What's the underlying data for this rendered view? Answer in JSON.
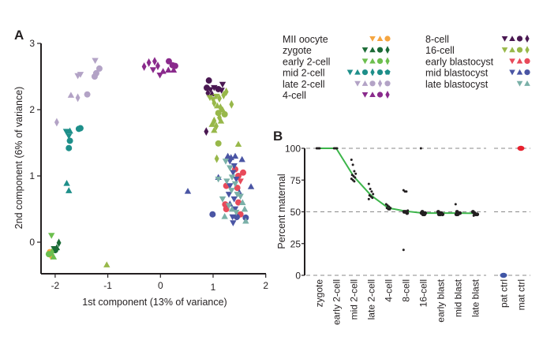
{
  "chart_data": [
    {
      "panel": "A",
      "type": "scatter",
      "title": "",
      "xlabel": "1st component (13% of variance)",
      "ylabel": "2nd component (6% of variance)",
      "xlim": [
        -2.27,
        2
      ],
      "ylim": [
        -0.48,
        3
      ],
      "xticks": [
        -2,
        -1,
        0,
        1,
        2
      ],
      "yticks": [
        0,
        1,
        2,
        3
      ],
      "grid": false,
      "legend_position": "right",
      "legend": [
        {
          "label": "MII oocyte",
          "color": "#f5a540",
          "markers": [
            "tri-down",
            "tri-up",
            "circle"
          ]
        },
        {
          "label": "zygote",
          "color": "#1b6b36",
          "markers": [
            "tri-down",
            "tri-up",
            "circle",
            "diamond"
          ]
        },
        {
          "label": "early 2-cell",
          "color": "#6cbf4e",
          "markers": [
            "tri-down",
            "tri-up",
            "circle",
            "diamond"
          ]
        },
        {
          "label": "mid 2-cell",
          "color": "#1e8f8a",
          "markers": [
            "tri-down",
            "tri-up",
            "circle",
            "diamond",
            "circle",
            "pentagon"
          ]
        },
        {
          "label": "late 2-cell",
          "color": "#b3a3c6",
          "markers": [
            "tri-down",
            "tri-up",
            "circle",
            "diamond",
            "circle"
          ]
        },
        {
          "label": "4-cell",
          "color": "#8a2a8c",
          "markers": [
            "tri-down",
            "tri-up",
            "circle",
            "diamond"
          ]
        },
        {
          "label": "8-cell",
          "color": "#4a1852",
          "markers": [
            "tri-down",
            "tri-up",
            "circle",
            "diamond"
          ]
        },
        {
          "label": "16-cell",
          "color": "#98b84a",
          "markers": [
            "tri-down",
            "tri-up",
            "circle",
            "diamond"
          ]
        },
        {
          "label": "early blastocyst",
          "color": "#e84a5a",
          "markers": [
            "tri-down",
            "tri-up",
            "circle"
          ]
        },
        {
          "label": "mid blastocyst",
          "color": "#4a55a4",
          "markers": [
            "tri-down",
            "tri-up",
            "circle"
          ]
        },
        {
          "label": "late blastocyst",
          "color": "#7ab0a8",
          "markers": [
            "tri-down",
            "tri-up"
          ]
        }
      ],
      "series": [
        {
          "name": "MII oocyte",
          "points": [
            [
              -2.08,
              -0.22,
              "tri-down"
            ],
            [
              -2.05,
              -0.2,
              "tri-up"
            ],
            [
              -2.1,
              -0.15,
              "circle"
            ]
          ]
        },
        {
          "name": "zygote",
          "points": [
            [
              -2.0,
              -0.12,
              "circle"
            ],
            [
              -2.02,
              -0.1,
              "tri-down"
            ],
            [
              -1.97,
              -0.08,
              "tri-up"
            ],
            [
              -1.93,
              -0.01,
              "diamond"
            ]
          ]
        },
        {
          "name": "early 2-cell",
          "points": [
            [
              -2.07,
              0.1,
              "tri-down"
            ],
            [
              -2.12,
              -0.18,
              "circle"
            ],
            [
              -2.06,
              -0.15,
              "diamond"
            ],
            [
              -2.03,
              -0.22,
              "tri-up"
            ]
          ]
        },
        {
          "name": "mid 2-cell",
          "points": [
            [
              -1.79,
              1.67,
              "tri-down"
            ],
            [
              -1.72,
              1.68,
              "tri-up"
            ],
            [
              -1.74,
              1.6,
              "tri-down"
            ],
            [
              -1.72,
              1.53,
              "circle"
            ],
            [
              -1.74,
              1.42,
              "circle"
            ],
            [
              -1.55,
              1.71,
              "circle"
            ],
            [
              -1.52,
              1.72,
              "circle"
            ],
            [
              -1.78,
              0.89,
              "tri-up"
            ],
            [
              -1.74,
              0.78,
              "tri-up"
            ]
          ]
        },
        {
          "name": "late 2-cell",
          "points": [
            [
              -1.24,
              2.74,
              "tri-down"
            ],
            [
              -1.57,
              2.51,
              "tri-down"
            ],
            [
              -1.52,
              2.53,
              "tri-down"
            ],
            [
              -1.22,
              2.55,
              "circle"
            ],
            [
              -1.25,
              2.5,
              "circle"
            ],
            [
              -1.16,
              2.62,
              "circle"
            ],
            [
              -1.7,
              2.22,
              "tri-up"
            ],
            [
              -1.57,
              2.18,
              "diamond"
            ],
            [
              -1.39,
              2.23,
              "circle"
            ],
            [
              -1.97,
              1.81,
              "diamond"
            ]
          ]
        },
        {
          "name": "4-cell",
          "points": [
            [
              -0.31,
              2.65,
              "diamond"
            ],
            [
              -0.22,
              2.71,
              "diamond"
            ],
            [
              -0.11,
              2.73,
              "diamond"
            ],
            [
              -0.05,
              2.66,
              "diamond"
            ],
            [
              -0.14,
              2.6,
              "tri-down"
            ],
            [
              -0.01,
              2.52,
              "tri-down"
            ],
            [
              0.05,
              2.58,
              "tri-up"
            ],
            [
              0.15,
              2.6,
              "tri-up"
            ],
            [
              0.16,
              2.73,
              "circle"
            ],
            [
              0.23,
              2.67,
              "circle"
            ],
            [
              0.28,
              2.66,
              "circle"
            ],
            [
              0.25,
              2.6,
              "tri-up"
            ]
          ]
        },
        {
          "name": "8-cell",
          "points": [
            [
              0.92,
              2.44,
              "circle"
            ],
            [
              0.88,
              2.33,
              "circle"
            ],
            [
              0.95,
              2.3,
              "tri-down"
            ],
            [
              1.02,
              2.33,
              "tri-down"
            ],
            [
              1.1,
              2.31,
              "circle"
            ],
            [
              1.18,
              2.38,
              "tri-down"
            ],
            [
              1.16,
              2.29,
              "tri-down"
            ],
            [
              0.9,
              2.25,
              "diamond"
            ],
            [
              0.98,
              2.24,
              "tri-up"
            ],
            [
              0.87,
              1.67,
              "diamond"
            ]
          ]
        },
        {
          "name": "16-cell",
          "points": [
            [
              0.94,
              2.18,
              "tri-down"
            ],
            [
              1.0,
              2.15,
              "tri-down"
            ],
            [
              1.06,
              2.2,
              "tri-down"
            ],
            [
              1.12,
              2.17,
              "diamond"
            ],
            [
              1.2,
              2.22,
              "diamond"
            ],
            [
              1.25,
              2.27,
              "diamond"
            ],
            [
              1.02,
              2.1,
              "diamond"
            ],
            [
              1.08,
              2.06,
              "tri-up"
            ],
            [
              1.14,
              2.03,
              "diamond"
            ],
            [
              1.18,
              2.0,
              "tri-up"
            ],
            [
              1.35,
              2.08,
              "diamond"
            ],
            [
              1.1,
              1.95,
              "circle"
            ],
            [
              1.22,
              1.93,
              "circle"
            ],
            [
              1.12,
              1.88,
              "diamond"
            ],
            [
              1.15,
              1.83,
              "tri-up"
            ],
            [
              1.02,
              1.83,
              "diamond"
            ],
            [
              1.06,
              1.75,
              "diamond"
            ],
            [
              0.98,
              1.78,
              "tri-up"
            ],
            [
              1.02,
              1.69,
              "tri-up"
            ],
            [
              1.1,
              1.49,
              "circle"
            ],
            [
              1.07,
              1.26,
              "diamond"
            ],
            [
              1.48,
              1.48,
              "tri-up"
            ],
            [
              -1.02,
              -0.34,
              "tri-up"
            ]
          ]
        },
        {
          "name": "early blastocyst",
          "points": [
            [
              1.42,
              1.1,
              "circle"
            ],
            [
              1.48,
              1.0,
              "circle"
            ],
            [
              1.57,
              1.05,
              "circle"
            ],
            [
              1.25,
              0.85,
              "circle"
            ],
            [
              1.52,
              0.92,
              "tri-down"
            ],
            [
              1.46,
              0.82,
              "circle"
            ],
            [
              1.23,
              0.57,
              "circle"
            ],
            [
              1.25,
              0.5,
              "circle"
            ],
            [
              1.48,
              0.6,
              "circle"
            ],
            [
              1.52,
              0.42,
              "circle"
            ]
          ]
        },
        {
          "name": "mid blastocyst",
          "points": [
            [
              1.28,
              1.3,
              "tri-up"
            ],
            [
              1.34,
              1.28,
              "tri-up"
            ],
            [
              1.42,
              1.3,
              "tri-up"
            ],
            [
              1.32,
              1.22,
              "tri-down"
            ],
            [
              1.4,
              1.15,
              "tri-down"
            ],
            [
              1.55,
              1.25,
              "tri-up"
            ],
            [
              1.38,
              1.05,
              "tri-down"
            ],
            [
              1.1,
              0.98,
              "tri-up"
            ],
            [
              1.44,
              0.95,
              "tri-down"
            ],
            [
              1.32,
              0.85,
              "tri-down"
            ],
            [
              1.72,
              0.84,
              "tri-up"
            ],
            [
              1.5,
              0.75,
              "tri-up"
            ],
            [
              1.3,
              0.72,
              "tri-down"
            ],
            [
              1.4,
              0.65,
              "tri-down"
            ],
            [
              1.32,
              0.58,
              "tri-up"
            ],
            [
              0.52,
              0.77,
              "tri-up"
            ],
            [
              1.42,
              0.5,
              "tri-down"
            ],
            [
              0.99,
              0.42,
              "circle"
            ],
            [
              1.37,
              0.38,
              "tri-down"
            ],
            [
              1.45,
              0.38,
              "circle"
            ],
            [
              1.62,
              0.37,
              "circle"
            ],
            [
              1.38,
              0.29,
              "tri-down"
            ]
          ]
        },
        {
          "name": "late blastocyst",
          "points": [
            [
              1.24,
              1.22,
              "tri-down"
            ],
            [
              1.32,
              1.12,
              "tri-down"
            ],
            [
              1.1,
              0.95,
              "tri-down"
            ],
            [
              1.36,
              0.98,
              "tri-down"
            ],
            [
              1.26,
              0.92,
              "tri-down"
            ],
            [
              1.42,
              0.88,
              "tri-down"
            ],
            [
              1.35,
              0.78,
              "tri-down"
            ],
            [
              1.46,
              0.72,
              "tri-down"
            ],
            [
              1.52,
              0.69,
              "tri-down"
            ],
            [
              1.18,
              0.65,
              "tri-down"
            ],
            [
              1.3,
              0.55,
              "tri-down"
            ],
            [
              1.56,
              0.6,
              "tri-up"
            ],
            [
              1.36,
              0.5,
              "tri-up"
            ],
            [
              1.22,
              0.39,
              "tri-up"
            ],
            [
              1.6,
              0.5,
              "tri-up"
            ],
            [
              1.44,
              0.45,
              "tri-down"
            ],
            [
              1.62,
              0.32,
              "tri-up"
            ]
          ]
        }
      ]
    },
    {
      "panel": "B",
      "type": "scatter",
      "title": "",
      "xlabel": "",
      "ylabel": "Percent maternal",
      "ylim": [
        0,
        100
      ],
      "yticks": [
        0,
        25,
        50,
        75,
        100
      ],
      "grid": "dashed horizontal at 0, 50, 100",
      "categories": [
        "zygote",
        "early 2-cell",
        "mid 2-cell",
        "late 2-cell",
        "4-cell",
        "8-cell",
        "16-cell",
        "early blast",
        "mid blast",
        "late blast",
        "pat ctrl",
        "mat ctrl"
      ],
      "trend_line": {
        "name": "mean",
        "color": "#3cb54a",
        "categories": [
          "zygote",
          "early 2-cell",
          "mid 2-cell",
          "late 2-cell",
          "4-cell",
          "8-cell",
          "16-cell",
          "early blast",
          "mid blast",
          "late blast"
        ],
        "values": [
          100,
          100,
          78,
          63,
          53,
          50.5,
          49,
          49,
          49,
          48.8
        ]
      },
      "points": {
        "zygote": [
          100,
          100,
          100
        ],
        "early 2-cell": [
          100,
          100,
          100
        ],
        "mid 2-cell": [
          91,
          87,
          82,
          80,
          79,
          78,
          77,
          76,
          75,
          74
        ],
        "late 2-cell": [
          72,
          68,
          66,
          64,
          63,
          62,
          61,
          60
        ],
        "4-cell": [
          56,
          55,
          54,
          53,
          53,
          52,
          52
        ],
        "8-cell": [
          67,
          66,
          66,
          51,
          50,
          50,
          49,
          20
        ],
        "16-cell": [
          100,
          50,
          49,
          49,
          49,
          48,
          48
        ],
        "early blast": [
          50,
          49,
          49,
          48,
          48,
          48
        ],
        "mid blast": [
          56,
          50,
          49,
          49,
          48,
          48
        ],
        "late blast": [
          50,
          49,
          48,
          48,
          47
        ],
        "pat ctrl": [
          0
        ],
        "mat ctrl": [
          100
        ]
      },
      "control_colors": {
        "pat ctrl": "#3f55a5",
        "mat ctrl": "#e8212e"
      }
    }
  ]
}
